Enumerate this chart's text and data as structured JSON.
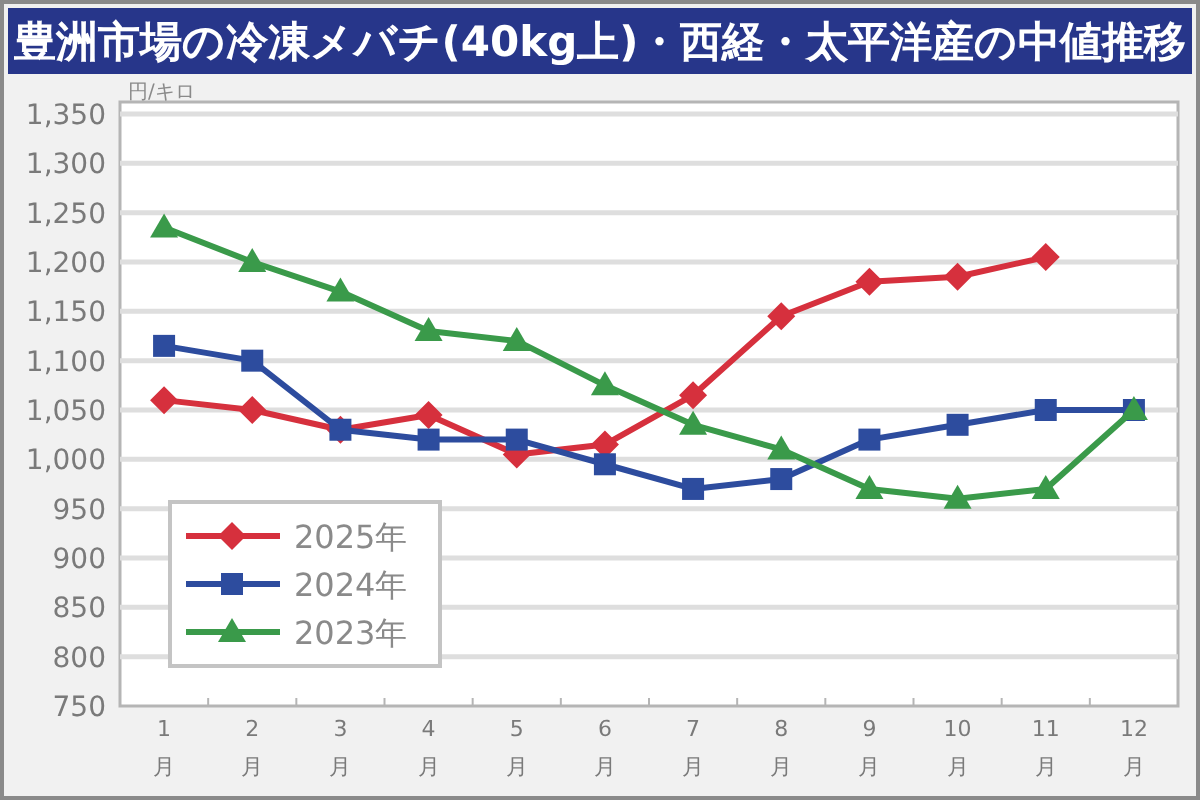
{
  "chart_data": {
    "type": "line",
    "title": "豊洲市場の冷凍メバチ(40kg上)・西経・太平洋産の中値推移",
    "ylabel": "円/キロ",
    "categories": [
      "1月",
      "2月",
      "3月",
      "4月",
      "5月",
      "6月",
      "7月",
      "8月",
      "9月",
      "10月",
      "11月",
      "12月"
    ],
    "series": [
      {
        "name": "2025年",
        "color": "#d6303d",
        "marker": "diamond",
        "values": [
          1060,
          1050,
          1030,
          1045,
          1005,
          1015,
          1065,
          1145,
          1180,
          1185,
          1205,
          null
        ]
      },
      {
        "name": "2024年",
        "color": "#2d4c9e",
        "marker": "square",
        "values": [
          1115,
          1100,
          1030,
          1020,
          1020,
          995,
          970,
          980,
          1020,
          1035,
          1050,
          1050
        ]
      },
      {
        "name": "2023年",
        "color": "#3a9a4a",
        "marker": "triangle",
        "values": [
          1235,
          1200,
          1170,
          1130,
          1120,
          1075,
          1035,
          1010,
          970,
          960,
          970,
          1050
        ]
      }
    ],
    "ylim": [
      750,
      1350
    ],
    "yticks": [
      750,
      800,
      850,
      900,
      950,
      {
        "value": 1000,
        "label": "1,000"
      },
      {
        "value": 1050,
        "label": "1,050"
      },
      {
        "value": 1100,
        "label": "1,100"
      },
      {
        "value": 1150,
        "label": "1,150"
      },
      {
        "value": 1200,
        "label": "1,200"
      },
      {
        "value": 1250,
        "label": "1,250"
      },
      {
        "value": 1300,
        "label": "1,300"
      },
      {
        "value": 1350,
        "label": "1,350"
      }
    ],
    "grid": "y",
    "legend": "bottom left",
    "line_style": "solid"
  }
}
